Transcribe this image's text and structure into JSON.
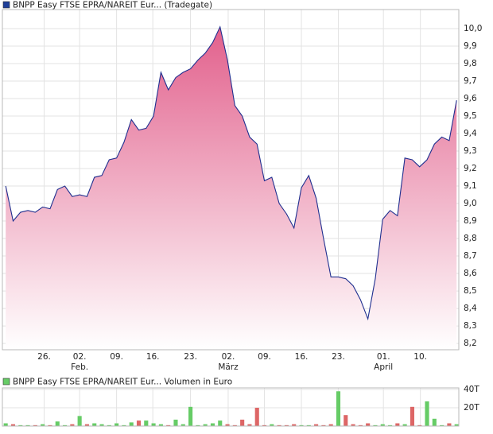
{
  "chart_data": [
    {
      "type": "area",
      "title": "BNPP Easy FTSE EPRA/NAREIT Eur... (Tradegate)",
      "color": "#1f2f8f",
      "fill_top": "#e2608c",
      "fill_bottom": "#ffffff",
      "legend_color": "#1f3f99",
      "x": [
        0,
        1,
        2,
        3,
        4,
        5,
        6,
        7,
        8,
        9,
        10,
        11,
        12,
        13,
        14,
        15,
        16,
        17,
        18,
        19,
        20,
        21,
        22,
        23,
        24,
        25,
        26,
        27,
        28,
        29,
        30,
        31,
        32,
        33,
        34,
        35,
        36,
        37,
        38,
        39,
        40,
        41,
        42,
        43,
        44,
        45,
        46,
        47,
        48,
        49,
        50,
        51,
        52,
        53,
        54,
        55,
        56,
        57,
        58,
        59,
        60,
        61
      ],
      "values": [
        9.1,
        8.9,
        8.95,
        8.96,
        8.95,
        8.98,
        8.97,
        9.08,
        9.1,
        9.04,
        9.05,
        9.04,
        9.15,
        9.16,
        9.25,
        9.26,
        9.35,
        9.48,
        9.42,
        9.43,
        9.5,
        9.75,
        9.65,
        9.72,
        9.75,
        9.77,
        9.82,
        9.86,
        9.92,
        10.01,
        9.82,
        9.56,
        9.5,
        9.38,
        9.34,
        9.13,
        9.15,
        9.0,
        8.94,
        8.86,
        9.09,
        9.16,
        9.03,
        8.8,
        8.58,
        8.58,
        8.57,
        8.53,
        8.45,
        8.34,
        8.57,
        8.91,
        8.96,
        8.93,
        9.26,
        9.25,
        9.21,
        9.25,
        9.34,
        9.38,
        9.36,
        9.59
      ],
      "xlim": [
        -0.45,
        61.3
      ],
      "xticks": [
        {
          "value": 5.2,
          "label": "26."
        },
        {
          "value": 10.0,
          "label": "02."
        },
        {
          "value": 15.0,
          "label": "09."
        },
        {
          "value": 19.9,
          "label": "16."
        },
        {
          "value": 25.0,
          "label": "23."
        },
        {
          "value": 30.1,
          "label": "02."
        },
        {
          "value": 35.0,
          "label": "09."
        },
        {
          "value": 40.0,
          "label": "16."
        },
        {
          "value": 45.0,
          "label": "23."
        },
        {
          "value": 51.1,
          "label": "01."
        },
        {
          "value": 56.1,
          "label": "10."
        }
      ],
      "month_labels": [
        {
          "value": 10.0,
          "label": "Feb."
        },
        {
          "value": 30.1,
          "label": "März"
        },
        {
          "value": 51.1,
          "label": "April"
        }
      ],
      "ylim": [
        8.164,
        10.109
      ],
      "yticks": [
        {
          "value": 8.2,
          "label": "8,2"
        },
        {
          "value": 8.3,
          "label": "8,3"
        },
        {
          "value": 8.4,
          "label": "8,4"
        },
        {
          "value": 8.5,
          "label": "8,5"
        },
        {
          "value": 8.6,
          "label": "8,6"
        },
        {
          "value": 8.7,
          "label": "8,7"
        },
        {
          "value": 8.8,
          "label": "8,8"
        },
        {
          "value": 8.9,
          "label": "8,9"
        },
        {
          "value": 9.0,
          "label": "9,0"
        },
        {
          "value": 9.1,
          "label": "9,1"
        },
        {
          "value": 9.2,
          "label": "9,2"
        },
        {
          "value": 9.3,
          "label": "9,3"
        },
        {
          "value": 9.4,
          "label": "9,4"
        },
        {
          "value": 9.5,
          "label": "9,5"
        },
        {
          "value": 9.6,
          "label": "9,6"
        },
        {
          "value": 9.7,
          "label": "9,7"
        },
        {
          "value": 9.8,
          "label": "9,8"
        },
        {
          "value": 9.9,
          "label": "9,9"
        },
        {
          "value": 10.0,
          "label": "10,0"
        }
      ],
      "grid": true
    },
    {
      "type": "bar",
      "title": "BNPP Easy FTSE EPRA/NAREIT Eur... Volumen in Euro",
      "legend_color": "#66cc66",
      "x": [
        0,
        1,
        2,
        3,
        4,
        5,
        6,
        7,
        8,
        9,
        10,
        11,
        12,
        13,
        14,
        15,
        16,
        17,
        18,
        19,
        20,
        21,
        22,
        23,
        24,
        25,
        26,
        27,
        28,
        29,
        30,
        31,
        32,
        33,
        34,
        35,
        36,
        37,
        38,
        39,
        40,
        41,
        42,
        43,
        44,
        45,
        46,
        47,
        48,
        49,
        50,
        51,
        52,
        53,
        54,
        55,
        56,
        57,
        58,
        59,
        60,
        61
      ],
      "values": [
        3,
        2,
        1,
        1,
        1,
        2,
        1,
        5,
        1,
        2,
        11,
        2,
        3,
        2,
        1,
        3,
        1,
        4,
        6,
        6,
        3,
        2,
        1,
        7,
        2,
        21,
        1,
        2,
        3,
        6,
        2,
        1,
        7,
        2,
        20,
        1,
        2,
        1,
        1,
        2,
        1,
        1,
        2,
        1,
        2,
        38,
        12,
        2,
        1,
        3,
        1,
        2,
        1,
        3,
        2,
        21,
        1,
        27,
        8,
        1,
        3,
        2
      ],
      "colors": [
        "#66cc66",
        "#dd6666",
        "#66cc66",
        "#66cc66",
        "#dd6666",
        "#66cc66",
        "#dd6666",
        "#66cc66",
        "#66cc66",
        "#dd6666",
        "#66cc66",
        "#dd6666",
        "#66cc66",
        "#66cc66",
        "#66cc66",
        "#66cc66",
        "#66cc66",
        "#66cc66",
        "#dd6666",
        "#66cc66",
        "#66cc66",
        "#66cc66",
        "#dd6666",
        "#66cc66",
        "#66cc66",
        "#66cc66",
        "#66cc66",
        "#66cc66",
        "#66cc66",
        "#66cc66",
        "#dd6666",
        "#dd6666",
        "#dd6666",
        "#dd6666",
        "#dd6666",
        "#dd6666",
        "#66cc66",
        "#dd6666",
        "#dd6666",
        "#dd6666",
        "#66cc66",
        "#66cc66",
        "#dd6666",
        "#dd6666",
        "#dd6666",
        "#66cc66",
        "#dd6666",
        "#dd6666",
        "#dd6666",
        "#dd6666",
        "#66cc66",
        "#66cc66",
        "#66cc66",
        "#dd6666",
        "#66cc66",
        "#dd6666",
        "#dd6666",
        "#66cc66",
        "#66cc66",
        "#66cc66",
        "#dd6666",
        "#66cc66"
      ],
      "xlim": [
        -0.45,
        61.3
      ],
      "ylim": [
        0,
        41.7
      ],
      "yticks": [
        {
          "value": 20,
          "label": "20T"
        },
        {
          "value": 40,
          "label": "40T"
        }
      ],
      "grid": true
    }
  ]
}
